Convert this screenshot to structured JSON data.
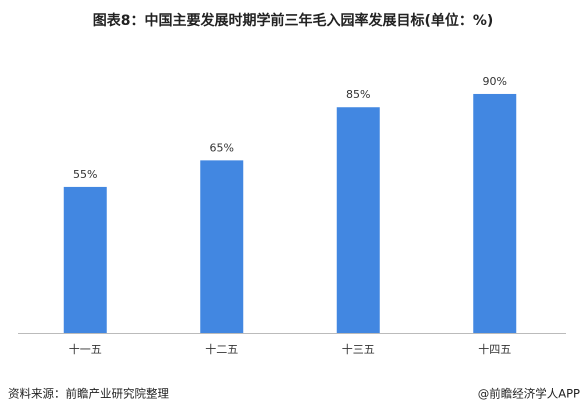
{
  "chart_data": {
    "type": "bar",
    "title": "图表8：中国主要发展时期学前三年毛入园率发展目标(单位：%)",
    "categories": [
      "十一五",
      "十二五",
      "十三五",
      "十四五"
    ],
    "values": [
      55,
      65,
      85,
      90
    ],
    "value_labels": [
      "55%",
      "65%",
      "85%",
      "90%"
    ],
    "color": "#4287e1"
  },
  "footer": {
    "source": "资料来源：前瞻产业研究院整理",
    "brand": "@前瞻经济学人APP"
  }
}
